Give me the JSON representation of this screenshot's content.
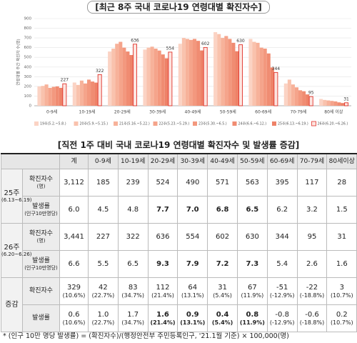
{
  "chart_data": {
    "type": "bar",
    "title": "[최근 8주 국내 코로나19 연령대별 확진자수]",
    "ylabel": "연령대별 주간 확진자 수(명)",
    "categories": [
      "0-9세",
      "10-19세",
      "20-29세",
      "30-39세",
      "40-49세",
      "50-59세",
      "60-69세",
      "70-79세",
      "80세 이상"
    ],
    "ylim": [
      0,
      900
    ],
    "yticks": [
      0,
      100,
      200,
      300,
      400,
      500,
      600,
      700,
      800,
      900
    ],
    "grid": true,
    "legend": "bottom",
    "series": [
      {
        "name": "19주(5.2.~5.8.)",
        "color": "#fbd3c4",
        "values": [
          200,
          240,
          560,
          580,
          640,
          760,
          690,
          230,
          70
        ]
      },
      {
        "name": "20주(5.9.~5.15.)",
        "color": "#f9c2ad",
        "values": [
          205,
          215,
          590,
          600,
          700,
          740,
          660,
          270,
          60
        ]
      },
      {
        "name": "21주(5.16.~5.22.)",
        "color": "#f7b29a",
        "values": [
          220,
          260,
          640,
          610,
          690,
          700,
          650,
          220,
          55
        ]
      },
      {
        "name": "22주(5.23.~5.29.)",
        "color": "#f5a48b",
        "values": [
          185,
          230,
          660,
          590,
          680,
          720,
          600,
          190,
          50
        ]
      },
      {
        "name": "23주(5.30.~6.5.)",
        "color": "#f3987e",
        "values": [
          195,
          270,
          600,
          570,
          690,
          690,
          590,
          160,
          45
        ]
      },
      {
        "name": "24주(6.6.~6.12.)",
        "color": "#f08c72",
        "values": [
          200,
          250,
          560,
          530,
          670,
          650,
          540,
          150,
          35
        ]
      },
      {
        "name": "25주(6.13.~6.19.)",
        "color": "#ee8268",
        "values": [
          185,
          239,
          524,
          490,
          571,
          563,
          395,
          117,
          28
        ]
      },
      {
        "name": "26주(6.20.~6.26.)",
        "color": "#fde4df",
        "stroke": "#e0332b",
        "show_values": true,
        "values": [
          227,
          322,
          636,
          554,
          602,
          630,
          344,
          95,
          31
        ]
      }
    ]
  },
  "table": {
    "title": "[직전 1주 대비 국내 코로나19 연령대별 확진자수 및 발생률 증감]",
    "header": [
      "계",
      "0-9세",
      "10-19세",
      "20-29세",
      "30-39세",
      "40-49세",
      "50-59세",
      "60-69세",
      "70-79세",
      "80세이상"
    ],
    "groups": [
      {
        "label": "25주",
        "sub": "(6.13~6.19)",
        "rows": [
          {
            "label": "확진자수",
            "sub": "(명)",
            "cells": [
              "3,112",
              "185",
              "239",
              "524",
              "490",
              "571",
              "563",
              "395",
              "117",
              "28"
            ],
            "bold": []
          },
          {
            "label": "발생률",
            "sub": "(인구10만명당)",
            "cells": [
              "6.0",
              "4.5",
              "4.8",
              "7.7",
              "7.0",
              "6.8",
              "6.5",
              "6.2",
              "3.2",
              "1.5"
            ],
            "bold": [
              3,
              4,
              5,
              6
            ]
          }
        ]
      },
      {
        "label": "26주",
        "sub": "(6.20~6.26)",
        "rows": [
          {
            "label": "확진자수",
            "sub": "(명)",
            "cells": [
              "3,441",
              "227",
              "322",
              "636",
              "554",
              "602",
              "630",
              "344",
              "95",
              "31"
            ],
            "bold": []
          },
          {
            "label": "발생률",
            "sub": "(인구10만명당)",
            "cells": [
              "6.6",
              "5.5",
              "6.5",
              "9.3",
              "7.9",
              "7.2",
              "7.3",
              "5.4",
              "2.6",
              "1.6"
            ],
            "bold": [
              3,
              4,
              5,
              6
            ]
          }
        ]
      },
      {
        "label": "증감",
        "rows": [
          {
            "label": "확진자수",
            "cells": [
              [
                "329",
                "(10.6%)"
              ],
              [
                "42",
                "(22.7%)"
              ],
              [
                "83",
                "(34.7%)"
              ],
              [
                "112",
                "(21.4%)"
              ],
              [
                "64",
                "(13.1%)"
              ],
              [
                "31",
                "(5.4%)"
              ],
              [
                "67",
                "(11.9%)"
              ],
              [
                "-51",
                "(-12.9%)"
              ],
              [
                "-22",
                "(-18.8%)"
              ],
              [
                "3",
                "(10.7%)"
              ]
            ],
            "bold": []
          },
          {
            "label": "발생률",
            "cells": [
              [
                "0.6",
                "(10.6%)"
              ],
              [
                "1.0",
                "(22.7%)"
              ],
              [
                "1.7",
                "(34.7%)"
              ],
              [
                "1.6",
                "(21.4%)"
              ],
              [
                "0.9",
                "(13.1%)"
              ],
              [
                "0.4",
                "(5.4%)"
              ],
              [
                "0.8",
                "(11.9%)"
              ],
              [
                "-0.8",
                "(-12.9%)"
              ],
              [
                "-0.6",
                "(-18.8%)"
              ],
              [
                "0.2",
                "(10.7%)"
              ]
            ],
            "bold": [
              3,
              4,
              5,
              6
            ]
          }
        ]
      }
    ]
  },
  "footnote": "* (인구 10만 명당 발생률) = (확진자수)/(행정안전부 주민등록인구, '21.1월 기준) × 100,000(명)"
}
